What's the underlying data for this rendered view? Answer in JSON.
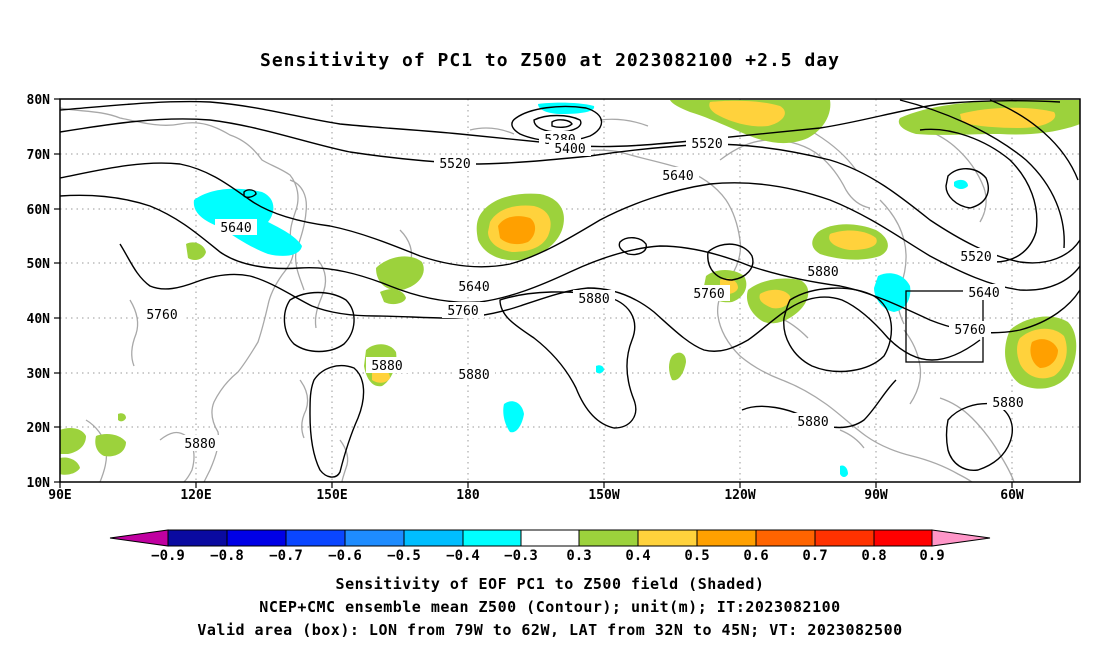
{
  "title": "Sensitivity of PC1 to Z500 at 2023082100 +2.5 day",
  "lat_labels": [
    "80N",
    "70N",
    "60N",
    "50N",
    "40N",
    "30N",
    "20N",
    "10N"
  ],
  "lon_labels": [
    "90E",
    "120E",
    "150E",
    "180",
    "150W",
    "120W",
    "90W",
    "60W"
  ],
  "contour_labels": [
    "5280",
    "5400",
    "5520",
    "5520",
    "5640",
    "5640",
    "5520",
    "5640",
    "5640",
    "5760",
    "5760",
    "5880",
    "5880",
    "5760",
    "5760",
    "5880",
    "5880",
    "5880",
    "5880",
    "5880"
  ],
  "colorbar": {
    "labels": [
      "−0.9",
      "−0.8",
      "−0.7",
      "−0.6",
      "−0.5",
      "−0.4",
      "−0.3",
      "0.3",
      "0.4",
      "0.5",
      "0.6",
      "0.7",
      "0.8",
      "0.9"
    ],
    "colors": [
      "#c000a0",
      "#0a0aa0",
      "#0000e6",
      "#0a46ff",
      "#1e8cff",
      "#00beff",
      "#00ffff",
      "#ffffff",
      "#9cd23c",
      "#ffd23c",
      "#ffa000",
      "#ff6400",
      "#ff3200",
      "#ff0000",
      "#ff96c8"
    ]
  },
  "captions": [
    "Sensitivity of EOF PC1 to Z500 field (Shaded)",
    "NCEP+CMC ensemble mean Z500 (Contour); unit(m); IT:2023082100",
    "Valid area (box): LON from 79W to 62W, LAT from 32N to 45N; VT: 2023082500"
  ]
}
